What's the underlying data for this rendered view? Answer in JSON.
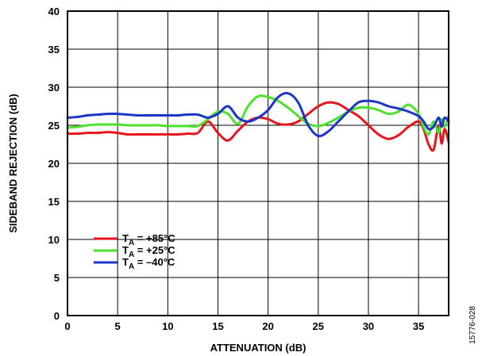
{
  "chart_data": {
    "type": "line",
    "xlabel": "ATTENUATION (dB)",
    "ylabel": "SIDEBAND REJECTION (dB)",
    "xlim": [
      0,
      38
    ],
    "ylim": [
      0,
      40
    ],
    "xticks": [
      0,
      5,
      10,
      15,
      20,
      25,
      30,
      35
    ],
    "yticks": [
      0,
      5,
      10,
      15,
      20,
      25,
      30,
      35,
      40
    ],
    "grid": true,
    "legend_position": "bottom-left",
    "figure_id": "15776-028",
    "series": [
      {
        "name_parts": {
          "sym": "T",
          "sub": "A",
          "rest": " = +85°C"
        },
        "color": "#e8141b",
        "x": [
          0,
          1,
          2,
          3,
          4,
          5,
          6,
          7,
          8,
          9,
          10,
          11,
          12,
          13,
          14,
          15,
          16,
          17,
          18,
          19,
          20,
          21,
          22,
          23,
          24,
          25,
          26,
          27,
          28,
          29,
          30,
          31,
          32,
          33,
          34,
          35,
          35.5,
          36,
          36.5,
          37,
          37.3,
          37.6,
          38
        ],
        "y": [
          23.9,
          23.9,
          24.0,
          24.0,
          24.1,
          24.0,
          23.8,
          23.8,
          23.8,
          23.8,
          23.8,
          23.8,
          23.9,
          24.0,
          25.5,
          24.0,
          23.0,
          24.3,
          25.5,
          26.0,
          25.8,
          25.2,
          25.1,
          25.5,
          26.5,
          27.5,
          28.0,
          27.8,
          27.0,
          26.2,
          25.0,
          23.8,
          23.2,
          23.7,
          24.8,
          25.5,
          24.5,
          22.5,
          21.8,
          25.0,
          22.6,
          24.5,
          22.8
        ]
      },
      {
        "name_parts": {
          "sym": "T",
          "sub": "A",
          "rest": " = +25°C"
        },
        "color": "#4ce12d",
        "x": [
          0,
          1,
          2,
          3,
          4,
          5,
          6,
          7,
          8,
          9,
          10,
          11,
          12,
          13,
          14,
          15,
          16,
          17,
          18,
          19,
          20,
          21,
          22,
          23,
          24,
          25,
          26,
          27,
          28,
          29,
          30,
          31,
          32,
          33,
          34,
          35,
          35.5,
          36,
          36.5,
          37,
          37.3,
          37.6,
          38
        ],
        "y": [
          24.7,
          24.8,
          25.0,
          25.1,
          25.1,
          25.1,
          25.0,
          25.0,
          25.0,
          25.0,
          24.9,
          24.9,
          24.9,
          24.9,
          25.8,
          26.8,
          26.5,
          25.2,
          27.5,
          28.8,
          28.7,
          28.2,
          27.3,
          26.2,
          25.2,
          24.9,
          25.3,
          26.0,
          26.8,
          27.3,
          27.3,
          27.0,
          26.5,
          26.8,
          27.7,
          26.5,
          24.8,
          23.8,
          25.5,
          24.0,
          25.8,
          24.8,
          26.3
        ]
      },
      {
        "name_parts": {
          "sym": "T",
          "sub": "A",
          "rest": " = –40°C"
        },
        "color": "#1a35c8",
        "x": [
          0,
          1,
          2,
          3,
          4,
          5,
          6,
          7,
          8,
          9,
          10,
          11,
          12,
          13,
          14,
          15,
          16,
          17,
          18,
          19,
          20,
          21,
          22,
          23,
          24,
          25,
          26,
          27,
          28,
          29,
          30,
          31,
          32,
          33,
          34,
          35,
          35.5,
          36,
          36.5,
          37,
          37.3,
          37.6,
          38
        ],
        "y": [
          26.0,
          26.1,
          26.3,
          26.4,
          26.5,
          26.5,
          26.4,
          26.3,
          26.3,
          26.3,
          26.3,
          26.3,
          26.4,
          26.4,
          26.0,
          26.5,
          27.5,
          26.0,
          25.5,
          26.0,
          27.0,
          28.7,
          29.2,
          28.0,
          25.0,
          23.6,
          24.2,
          25.5,
          26.8,
          28.0,
          28.2,
          28.0,
          27.5,
          27.2,
          26.8,
          26.2,
          25.5,
          24.5,
          24.8,
          26.0,
          24.8,
          26.0,
          25.5
        ]
      }
    ]
  }
}
